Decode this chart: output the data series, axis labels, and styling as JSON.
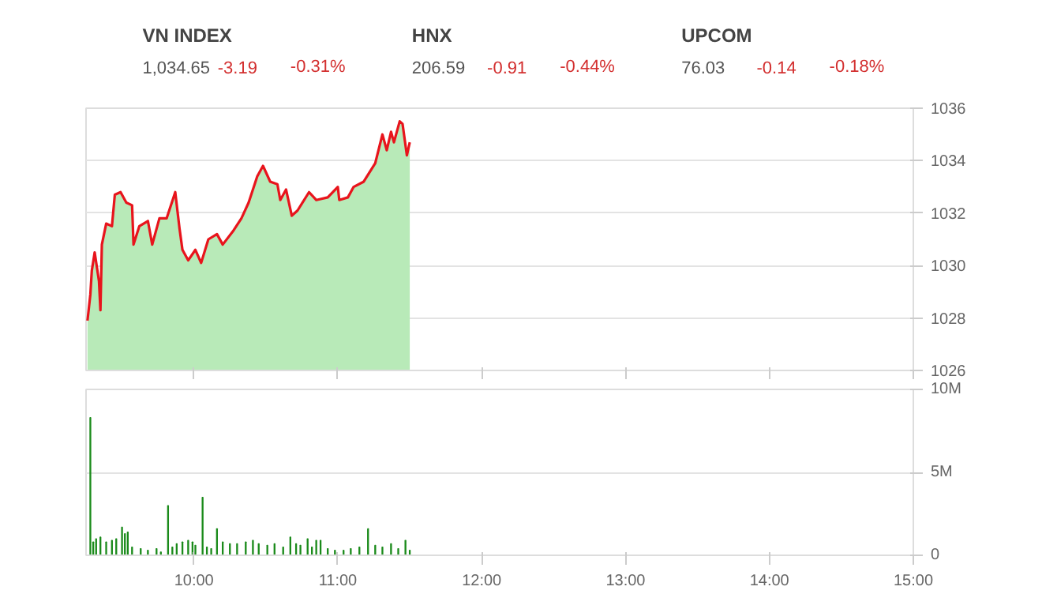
{
  "chart_data": [
    {
      "type": "other",
      "categories": [
        "VN INDEX",
        "HNX",
        "UPCOM"
      ],
      "annotations": [
        "1,034.65",
        "-3.19",
        "-0.31%",
        "206.59",
        "-0.91",
        "-0.44%",
        "76.03",
        "-0.14",
        "-0.18%"
      ],
      "colors": [
        "#444444",
        "#555555",
        "#d32f2f"
      ]
    },
    {
      "type": "area",
      "tick_labels": "y",
      "grid": "y",
      "xlim": [
        9.25,
        15
      ],
      "xticks": [
        10,
        11,
        12,
        13,
        14,
        15
      ],
      "ylim": [
        1026,
        1036
      ],
      "yticks": [
        1026,
        1028,
        1030,
        1032,
        1034,
        1036
      ],
      "series": [
        {
          "type": "area",
          "color": "#b8eab8",
          "x": [
            9.26,
            9.28,
            9.29,
            9.31,
            9.34,
            9.35,
            9.36,
            9.39,
            9.43,
            9.45,
            9.49,
            9.53,
            9.57,
            9.58,
            9.62,
            9.68,
            9.71,
            9.76,
            9.81,
            9.87,
            9.9,
            9.92,
            9.96,
            10.01,
            10.05,
            10.1,
            10.16,
            10.2,
            10.27,
            10.33,
            10.38,
            10.44,
            10.48,
            10.53,
            10.58,
            10.6,
            10.64,
            10.68,
            10.72,
            10.8,
            10.85,
            10.93,
            11.0,
            11.01,
            11.07,
            11.11,
            11.18,
            11.26,
            11.31,
            11.34,
            11.37,
            11.39,
            11.43,
            11.45,
            11.48,
            11.5
          ],
          "values": [
            1027.9,
            1028.9,
            1029.8,
            1030.5,
            1029.4,
            1028.3,
            1030.8,
            1031.6,
            1031.5,
            1032.7,
            1032.8,
            1032.4,
            1032.3,
            1030.8,
            1031.5,
            1031.7,
            1030.8,
            1031.8,
            1031.8,
            1032.8,
            1031.4,
            1030.6,
            1030.2,
            1030.6,
            1030.1,
            1031.0,
            1031.2,
            1030.8,
            1031.3,
            1031.8,
            1032.4,
            1033.4,
            1033.8,
            1033.2,
            1033.1,
            1032.5,
            1032.9,
            1031.9,
            1032.1,
            1032.8,
            1032.5,
            1032.6,
            1033.0,
            1032.5,
            1032.6,
            1033.0,
            1033.2,
            1033.9,
            1035.0,
            1034.4,
            1035.1,
            1034.7,
            1035.5,
            1035.4,
            1034.2,
            1034.7
          ]
        },
        {
          "type": "line",
          "color": "#e8141c",
          "x": [
            9.26,
            9.28,
            9.29,
            9.31,
            9.34,
            9.35,
            9.36,
            9.39,
            9.43,
            9.45,
            9.49,
            9.53,
            9.57,
            9.58,
            9.62,
            9.68,
            9.71,
            9.76,
            9.81,
            9.87,
            9.9,
            9.92,
            9.96,
            10.01,
            10.05,
            10.1,
            10.16,
            10.2,
            10.27,
            10.33,
            10.38,
            10.44,
            10.48,
            10.53,
            10.58,
            10.6,
            10.64,
            10.68,
            10.72,
            10.8,
            10.85,
            10.93,
            11.0,
            11.01,
            11.07,
            11.11,
            11.18,
            11.26,
            11.31,
            11.34,
            11.37,
            11.39,
            11.43,
            11.45,
            11.48,
            11.5
          ],
          "values": [
            1027.9,
            1028.9,
            1029.8,
            1030.5,
            1029.4,
            1028.3,
            1030.8,
            1031.6,
            1031.5,
            1032.7,
            1032.8,
            1032.4,
            1032.3,
            1030.8,
            1031.5,
            1031.7,
            1030.8,
            1031.8,
            1031.8,
            1032.8,
            1031.4,
            1030.6,
            1030.2,
            1030.6,
            1030.1,
            1031.0,
            1031.2,
            1030.8,
            1031.3,
            1031.8,
            1032.4,
            1033.4,
            1033.8,
            1033.2,
            1033.1,
            1032.5,
            1032.9,
            1031.9,
            1032.1,
            1032.8,
            1032.5,
            1032.6,
            1033.0,
            1032.5,
            1032.6,
            1033.0,
            1033.2,
            1033.9,
            1035.0,
            1034.4,
            1035.1,
            1034.7,
            1035.5,
            1035.4,
            1034.2,
            1034.7
          ]
        }
      ]
    },
    {
      "type": "bar",
      "grid": "y",
      "xlim": [
        9.25,
        15
      ],
      "xticks": [
        {
          "value": 10,
          "label": "10:00"
        },
        {
          "value": 11,
          "label": "11:00"
        },
        {
          "value": 12,
          "label": "12:00"
        },
        {
          "value": 13,
          "label": "13:00"
        },
        {
          "value": 14,
          "label": "14:00"
        },
        {
          "value": 15,
          "label": "15:00"
        }
      ],
      "ylim": [
        0,
        10000000
      ],
      "yticks": [
        {
          "value": 0,
          "label": "0"
        },
        {
          "value": 5000000,
          "label": "5M"
        },
        {
          "value": 10000000,
          "label": "10M"
        }
      ],
      "series": [
        {
          "color": "#1a8a1a",
          "x": [
            9.28,
            9.3,
            9.32,
            9.35,
            9.39,
            9.43,
            9.46,
            9.5,
            9.52,
            9.54,
            9.57,
            9.63,
            9.68,
            9.74,
            9.77,
            9.82,
            9.85,
            9.88,
            9.92,
            9.96,
            9.99,
            10.01,
            10.06,
            10.09,
            10.12,
            10.16,
            10.2,
            10.25,
            10.3,
            10.36,
            10.41,
            10.45,
            10.51,
            10.56,
            10.62,
            10.67,
            10.71,
            10.74,
            10.79,
            10.82,
            10.85,
            10.88,
            10.93,
            10.98,
            11.04,
            11.09,
            11.15,
            11.21,
            11.26,
            11.31,
            11.37,
            11.42,
            11.47,
            11.5
          ],
          "values": [
            8300000,
            800000,
            1000000,
            1100000,
            800000,
            900000,
            1000000,
            1700000,
            1300000,
            1400000,
            500000,
            400000,
            300000,
            400000,
            200000,
            3000000,
            500000,
            700000,
            800000,
            900000,
            800000,
            600000,
            3500000,
            500000,
            400000,
            1600000,
            800000,
            700000,
            700000,
            800000,
            900000,
            700000,
            600000,
            700000,
            500000,
            1100000,
            700000,
            600000,
            1000000,
            500000,
            900000,
            900000,
            400000,
            300000,
            300000,
            400000,
            500000,
            1600000,
            600000,
            500000,
            700000,
            400000,
            900000,
            300000
          ]
        }
      ]
    }
  ]
}
